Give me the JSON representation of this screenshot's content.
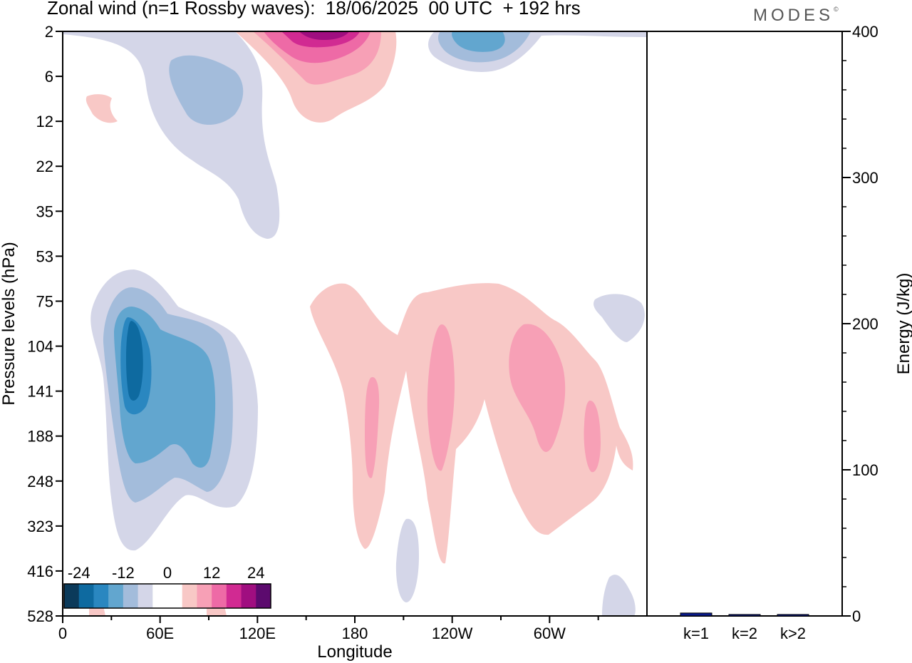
{
  "header": {
    "title": "Zonal wind (n=1 Rossby waves):  18/06/2025  00 UTC  + 192 hrs",
    "brand": "MODES",
    "brand_mark": "©"
  },
  "chart_data": [
    {
      "type": "heatmap",
      "title": "Zonal wind (n=1 Rossby waves):  18/06/2025  00 UTC  + 192 hrs",
      "xlabel": "Longitude",
      "ylabel": "Pressure levels (hPa)",
      "x_ticks": [
        "0",
        "60E",
        "120E",
        "180",
        "120W",
        "60W"
      ],
      "y_ticks": [
        "2",
        "6",
        "12",
        "22",
        "35",
        "53",
        "75",
        "104",
        "141",
        "188",
        "248",
        "323",
        "416",
        "528"
      ],
      "colorbar": {
        "tick_labels": [
          "-24",
          "-12",
          "0",
          "12",
          "24"
        ],
        "colors": [
          "#0b3a5a",
          "#0e6aa0",
          "#2a87c0",
          "#62a6cf",
          "#a3bcdb",
          "#d4d6e8",
          "#ffffff",
          "#ffffff",
          "#f8c8c6",
          "#f7a0b6",
          "#ee6aa6",
          "#d12a92",
          "#a00e80",
          "#5c0a6e"
        ]
      },
      "features": [
        {
          "sign": "negative",
          "level": 4,
          "lon_range": [
            25,
            55
          ],
          "pressure_range": [
            104,
            188
          ]
        },
        {
          "sign": "negative",
          "level": 3,
          "lon_range": [
            15,
            100
          ],
          "pressure_range": [
            75,
            248
          ]
        },
        {
          "sign": "positive",
          "level": 2,
          "lon_range": [
            180,
            345
          ],
          "pressure_range": [
            104,
            248
          ]
        },
        {
          "sign": "positive",
          "level": 4,
          "lon_range": [
            150,
            200
          ],
          "pressure_range": [
            2,
            6
          ]
        },
        {
          "sign": "negative",
          "level": 3,
          "lon_range": [
            225,
            265
          ],
          "pressure_range": [
            2,
            4
          ]
        }
      ]
    },
    {
      "type": "bar",
      "categories": [
        "k=1",
        "k=2",
        "k>2"
      ],
      "values": [
        2,
        1,
        1
      ],
      "ylabel": "Energy (J/kg)",
      "ylim": [
        0,
        400
      ],
      "y_ticks": [
        "0",
        "100",
        "200",
        "300",
        "400"
      ],
      "bar_color": "#0a1a8a"
    }
  ]
}
